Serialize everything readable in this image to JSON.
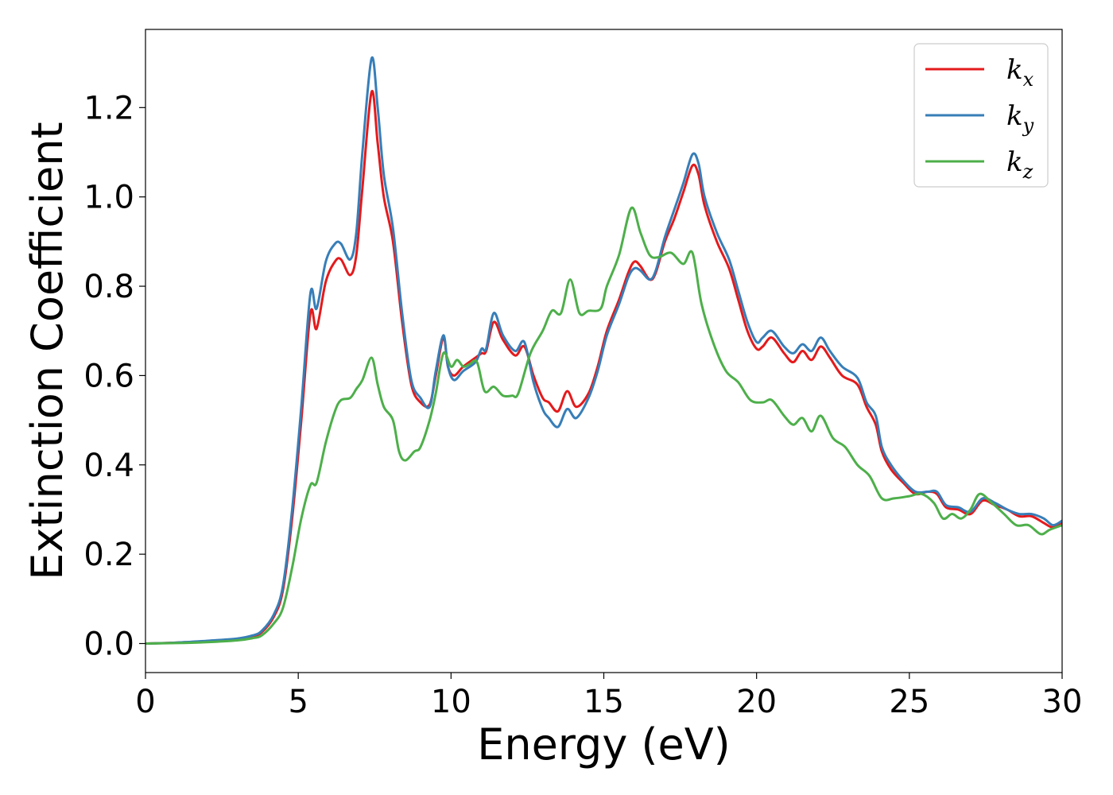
{
  "chart_data": {
    "type": "line",
    "xlabel": "Energy (eV)",
    "ylabel": "Extinction Coefficient",
    "xlim": [
      0,
      30
    ],
    "ylim": [
      -0.065,
      1.375
    ],
    "xticks": [
      0,
      5,
      10,
      15,
      20,
      25,
      30
    ],
    "xtick_labels": [
      "0",
      "5",
      "10",
      "15",
      "20",
      "25",
      "30"
    ],
    "yticks": [
      0.0,
      0.2,
      0.4,
      0.6,
      0.8,
      1.0,
      1.2
    ],
    "ytick_labels": [
      "0.0",
      "0.2",
      "0.4",
      "0.6",
      "0.8",
      "1.0",
      "1.2"
    ],
    "grid": false,
    "legend_position": "top-right",
    "series": [
      {
        "name": "k_x",
        "label_main": "k",
        "label_sub": "x",
        "color": "#e41a1c",
        "points": [
          [
            0,
            0.0
          ],
          [
            1,
            0.002
          ],
          [
            2,
            0.005
          ],
          [
            3,
            0.01
          ],
          [
            3.5,
            0.016
          ],
          [
            3.8,
            0.025
          ],
          [
            4.2,
            0.06
          ],
          [
            4.5,
            0.12
          ],
          [
            4.8,
            0.28
          ],
          [
            5.1,
            0.5
          ],
          [
            5.4,
            0.74
          ],
          [
            5.6,
            0.705
          ],
          [
            5.9,
            0.81
          ],
          [
            6.2,
            0.855
          ],
          [
            6.4,
            0.86
          ],
          [
            6.7,
            0.825
          ],
          [
            6.9,
            0.87
          ],
          [
            7.1,
            1.02
          ],
          [
            7.4,
            1.235
          ],
          [
            7.6,
            1.12
          ],
          [
            7.8,
            1.0
          ],
          [
            8.1,
            0.9
          ],
          [
            8.4,
            0.72
          ],
          [
            8.7,
            0.58
          ],
          [
            9.0,
            0.54
          ],
          [
            9.3,
            0.535
          ],
          [
            9.5,
            0.6
          ],
          [
            9.75,
            0.685
          ],
          [
            9.9,
            0.62
          ],
          [
            10.1,
            0.6
          ],
          [
            10.4,
            0.62
          ],
          [
            10.8,
            0.64
          ],
          [
            11.0,
            0.65
          ],
          [
            11.15,
            0.655
          ],
          [
            11.4,
            0.72
          ],
          [
            11.7,
            0.68
          ],
          [
            12.1,
            0.645
          ],
          [
            12.4,
            0.665
          ],
          [
            12.7,
            0.6
          ],
          [
            13.0,
            0.55
          ],
          [
            13.2,
            0.54
          ],
          [
            13.5,
            0.52
          ],
          [
            13.8,
            0.565
          ],
          [
            14.1,
            0.53
          ],
          [
            14.5,
            0.56
          ],
          [
            14.8,
            0.62
          ],
          [
            15.1,
            0.7
          ],
          [
            15.5,
            0.77
          ],
          [
            15.8,
            0.83
          ],
          [
            16.0,
            0.855
          ],
          [
            16.2,
            0.845
          ],
          [
            16.5,
            0.815
          ],
          [
            16.7,
            0.83
          ],
          [
            17.0,
            0.9
          ],
          [
            17.3,
            0.95
          ],
          [
            17.6,
            1.01
          ],
          [
            17.9,
            1.07
          ],
          [
            18.1,
            1.05
          ],
          [
            18.3,
            0.98
          ],
          [
            18.7,
            0.9
          ],
          [
            19.1,
            0.84
          ],
          [
            19.4,
            0.77
          ],
          [
            19.7,
            0.7
          ],
          [
            20.0,
            0.66
          ],
          [
            20.2,
            0.665
          ],
          [
            20.5,
            0.685
          ],
          [
            20.9,
            0.65
          ],
          [
            21.2,
            0.63
          ],
          [
            21.5,
            0.655
          ],
          [
            21.8,
            0.635
          ],
          [
            22.1,
            0.665
          ],
          [
            22.4,
            0.64
          ],
          [
            22.8,
            0.6
          ],
          [
            23.3,
            0.58
          ],
          [
            23.6,
            0.53
          ],
          [
            23.9,
            0.49
          ],
          [
            24.1,
            0.43
          ],
          [
            24.4,
            0.39
          ],
          [
            24.8,
            0.36
          ],
          [
            25.2,
            0.335
          ],
          [
            25.6,
            0.34
          ],
          [
            25.9,
            0.335
          ],
          [
            26.2,
            0.305
          ],
          [
            26.6,
            0.3
          ],
          [
            27.0,
            0.29
          ],
          [
            27.4,
            0.32
          ],
          [
            27.8,
            0.31
          ],
          [
            28.2,
            0.3
          ],
          [
            28.6,
            0.285
          ],
          [
            29.0,
            0.285
          ],
          [
            29.4,
            0.27
          ],
          [
            29.7,
            0.26
          ],
          [
            30.0,
            0.27
          ]
        ]
      },
      {
        "name": "k_y",
        "label_main": "k",
        "label_sub": "y",
        "color": "#377eb8",
        "points": [
          [
            0,
            0.0
          ],
          [
            1,
            0.002
          ],
          [
            2,
            0.006
          ],
          [
            3,
            0.011
          ],
          [
            3.5,
            0.018
          ],
          [
            3.8,
            0.028
          ],
          [
            4.2,
            0.065
          ],
          [
            4.5,
            0.13
          ],
          [
            4.8,
            0.3
          ],
          [
            5.1,
            0.53
          ],
          [
            5.4,
            0.785
          ],
          [
            5.6,
            0.75
          ],
          [
            5.9,
            0.855
          ],
          [
            6.2,
            0.895
          ],
          [
            6.4,
            0.895
          ],
          [
            6.7,
            0.86
          ],
          [
            6.9,
            0.92
          ],
          [
            7.1,
            1.1
          ],
          [
            7.4,
            1.31
          ],
          [
            7.6,
            1.2
          ],
          [
            7.8,
            1.05
          ],
          [
            8.1,
            0.93
          ],
          [
            8.4,
            0.74
          ],
          [
            8.7,
            0.59
          ],
          [
            9.0,
            0.55
          ],
          [
            9.3,
            0.53
          ],
          [
            9.5,
            0.61
          ],
          [
            9.75,
            0.69
          ],
          [
            9.9,
            0.62
          ],
          [
            10.1,
            0.59
          ],
          [
            10.4,
            0.61
          ],
          [
            10.8,
            0.63
          ],
          [
            11.0,
            0.66
          ],
          [
            11.15,
            0.66
          ],
          [
            11.4,
            0.74
          ],
          [
            11.7,
            0.69
          ],
          [
            12.1,
            0.655
          ],
          [
            12.4,
            0.675
          ],
          [
            12.7,
            0.585
          ],
          [
            13.0,
            0.525
          ],
          [
            13.2,
            0.505
          ],
          [
            13.5,
            0.485
          ],
          [
            13.8,
            0.525
          ],
          [
            14.1,
            0.505
          ],
          [
            14.5,
            0.55
          ],
          [
            14.8,
            0.61
          ],
          [
            15.1,
            0.69
          ],
          [
            15.5,
            0.76
          ],
          [
            15.8,
            0.82
          ],
          [
            16.0,
            0.84
          ],
          [
            16.2,
            0.835
          ],
          [
            16.5,
            0.815
          ],
          [
            16.7,
            0.835
          ],
          [
            17.0,
            0.91
          ],
          [
            17.3,
            0.97
          ],
          [
            17.6,
            1.03
          ],
          [
            17.9,
            1.095
          ],
          [
            18.1,
            1.075
          ],
          [
            18.3,
            1.0
          ],
          [
            18.7,
            0.92
          ],
          [
            19.1,
            0.86
          ],
          [
            19.4,
            0.79
          ],
          [
            19.7,
            0.72
          ],
          [
            20.0,
            0.675
          ],
          [
            20.2,
            0.685
          ],
          [
            20.5,
            0.7
          ],
          [
            20.9,
            0.665
          ],
          [
            21.2,
            0.65
          ],
          [
            21.5,
            0.67
          ],
          [
            21.8,
            0.655
          ],
          [
            22.1,
            0.685
          ],
          [
            22.4,
            0.655
          ],
          [
            22.8,
            0.62
          ],
          [
            23.3,
            0.595
          ],
          [
            23.6,
            0.54
          ],
          [
            23.9,
            0.51
          ],
          [
            24.1,
            0.44
          ],
          [
            24.4,
            0.4
          ],
          [
            24.8,
            0.365
          ],
          [
            25.2,
            0.34
          ],
          [
            25.6,
            0.34
          ],
          [
            25.9,
            0.34
          ],
          [
            26.2,
            0.31
          ],
          [
            26.6,
            0.305
          ],
          [
            27.0,
            0.295
          ],
          [
            27.4,
            0.325
          ],
          [
            27.8,
            0.315
          ],
          [
            28.2,
            0.3
          ],
          [
            28.6,
            0.29
          ],
          [
            29.0,
            0.29
          ],
          [
            29.4,
            0.28
          ],
          [
            29.7,
            0.265
          ],
          [
            30.0,
            0.275
          ]
        ]
      },
      {
        "name": "k_z",
        "label_main": "k",
        "label_sub": "z",
        "color": "#4daf4a",
        "points": [
          [
            0,
            0.0
          ],
          [
            1,
            0.001
          ],
          [
            2,
            0.003
          ],
          [
            3,
            0.007
          ],
          [
            3.5,
            0.012
          ],
          [
            3.8,
            0.018
          ],
          [
            4.2,
            0.045
          ],
          [
            4.5,
            0.08
          ],
          [
            4.8,
            0.17
          ],
          [
            5.1,
            0.28
          ],
          [
            5.4,
            0.355
          ],
          [
            5.6,
            0.36
          ],
          [
            5.9,
            0.45
          ],
          [
            6.2,
            0.52
          ],
          [
            6.4,
            0.545
          ],
          [
            6.7,
            0.55
          ],
          [
            6.9,
            0.57
          ],
          [
            7.1,
            0.59
          ],
          [
            7.4,
            0.64
          ],
          [
            7.6,
            0.58
          ],
          [
            7.8,
            0.53
          ],
          [
            8.1,
            0.5
          ],
          [
            8.3,
            0.43
          ],
          [
            8.5,
            0.41
          ],
          [
            8.8,
            0.43
          ],
          [
            9.0,
            0.44
          ],
          [
            9.3,
            0.5
          ],
          [
            9.5,
            0.56
          ],
          [
            9.75,
            0.65
          ],
          [
            10.0,
            0.62
          ],
          [
            10.2,
            0.635
          ],
          [
            10.4,
            0.62
          ],
          [
            10.6,
            0.625
          ],
          [
            10.85,
            0.63
          ],
          [
            11.1,
            0.565
          ],
          [
            11.4,
            0.575
          ],
          [
            11.7,
            0.555
          ],
          [
            12.0,
            0.555
          ],
          [
            12.2,
            0.56
          ],
          [
            12.6,
            0.65
          ],
          [
            13.0,
            0.7
          ],
          [
            13.3,
            0.745
          ],
          [
            13.6,
            0.74
          ],
          [
            13.9,
            0.815
          ],
          [
            14.2,
            0.74
          ],
          [
            14.5,
            0.745
          ],
          [
            14.9,
            0.75
          ],
          [
            15.1,
            0.8
          ],
          [
            15.5,
            0.87
          ],
          [
            15.9,
            0.975
          ],
          [
            16.2,
            0.92
          ],
          [
            16.5,
            0.87
          ],
          [
            16.8,
            0.865
          ],
          [
            17.2,
            0.875
          ],
          [
            17.6,
            0.85
          ],
          [
            17.9,
            0.875
          ],
          [
            18.2,
            0.76
          ],
          [
            18.6,
            0.67
          ],
          [
            19.0,
            0.61
          ],
          [
            19.4,
            0.585
          ],
          [
            19.8,
            0.545
          ],
          [
            20.2,
            0.54
          ],
          [
            20.5,
            0.545
          ],
          [
            20.9,
            0.51
          ],
          [
            21.2,
            0.49
          ],
          [
            21.5,
            0.505
          ],
          [
            21.8,
            0.475
          ],
          [
            22.1,
            0.51
          ],
          [
            22.5,
            0.46
          ],
          [
            22.9,
            0.44
          ],
          [
            23.3,
            0.4
          ],
          [
            23.7,
            0.375
          ],
          [
            24.1,
            0.325
          ],
          [
            24.5,
            0.325
          ],
          [
            25.0,
            0.33
          ],
          [
            25.4,
            0.335
          ],
          [
            25.8,
            0.315
          ],
          [
            26.1,
            0.28
          ],
          [
            26.4,
            0.29
          ],
          [
            26.7,
            0.28
          ],
          [
            27.0,
            0.3
          ],
          [
            27.3,
            0.335
          ],
          [
            27.7,
            0.315
          ],
          [
            28.1,
            0.29
          ],
          [
            28.5,
            0.265
          ],
          [
            28.9,
            0.265
          ],
          [
            29.3,
            0.245
          ],
          [
            29.6,
            0.255
          ],
          [
            30.0,
            0.265
          ]
        ]
      }
    ]
  }
}
